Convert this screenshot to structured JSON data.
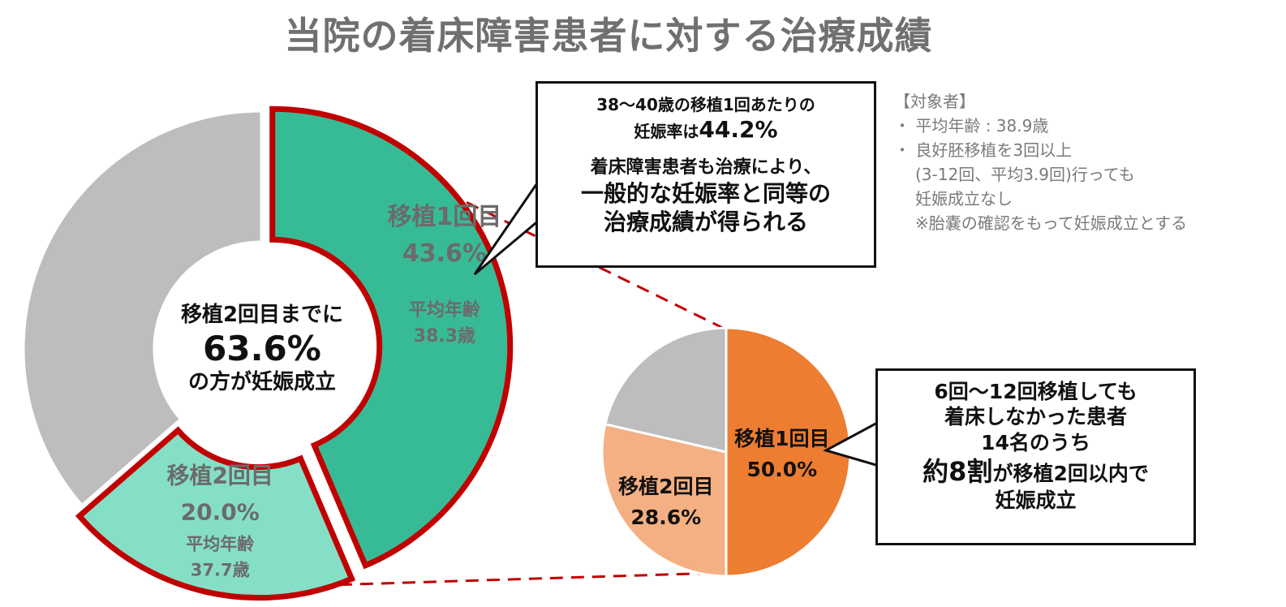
{
  "title": "当院の着床障害患者に対する治療成績",
  "center": {
    "line1": "移植2回目までに",
    "value": "63.6%",
    "line3": "の方が妊娠成立"
  },
  "callout1": {
    "line1": "38〜40歳の移植1回あたりの",
    "line2_pre": "妊娠率は",
    "line2_val": "44.2%",
    "line3": "着床障害患者も治療により、",
    "line4": "一般的な妊娠率と同等の",
    "line5": "治療成績が得られる"
  },
  "target": {
    "heading": "【対象者】",
    "bullet1": "・ 平均年齢 : 38.9歳",
    "bullet2": "・ 良好胚移植を3回以上",
    "bullet2_cont1": "(3-12回、平均3.9回)行っても",
    "bullet2_cont2": "妊娠成立なし",
    "note": "※胎嚢の確認をもって妊娠成立とする"
  },
  "callout2": {
    "line1": "6回〜12回移植しても",
    "line2": "着床しなかった患者",
    "line3": "14名のうち",
    "line4_em": "約8割",
    "line4_rest": "が移植2回以内で",
    "line5": "妊娠成立"
  },
  "chart_data": [
    {
      "type": "pie",
      "style": "donut",
      "start": "12 o'clock, clockwise",
      "slices": [
        {
          "label": "移植1回目",
          "value": 43.6,
          "value_label": "43.6%",
          "sublabel": "平均年齢",
          "age": "38.3歳",
          "color": "#37bb97",
          "highlight": true
        },
        {
          "label": "移植2回目",
          "value": 20.0,
          "value_label": "20.0%",
          "sublabel": "平均年齢",
          "age": "37.7歳",
          "color": "#85dfc6",
          "highlight": true
        },
        {
          "label": "",
          "value": 36.4,
          "color": "#bdbdbd",
          "highlight": false
        }
      ],
      "highlight_color": "#c00000"
    },
    {
      "type": "pie",
      "start": "12 o'clock, clockwise",
      "slices": [
        {
          "label": "移植1回目",
          "value": 50.0,
          "value_label": "50.0%",
          "color": "#ed7d31"
        },
        {
          "label": "移植2回目",
          "value": 28.6,
          "value_label": "28.6%",
          "color": "#f4b083"
        },
        {
          "label": "",
          "value": 21.4,
          "color": "#bdbdbd"
        }
      ]
    }
  ]
}
